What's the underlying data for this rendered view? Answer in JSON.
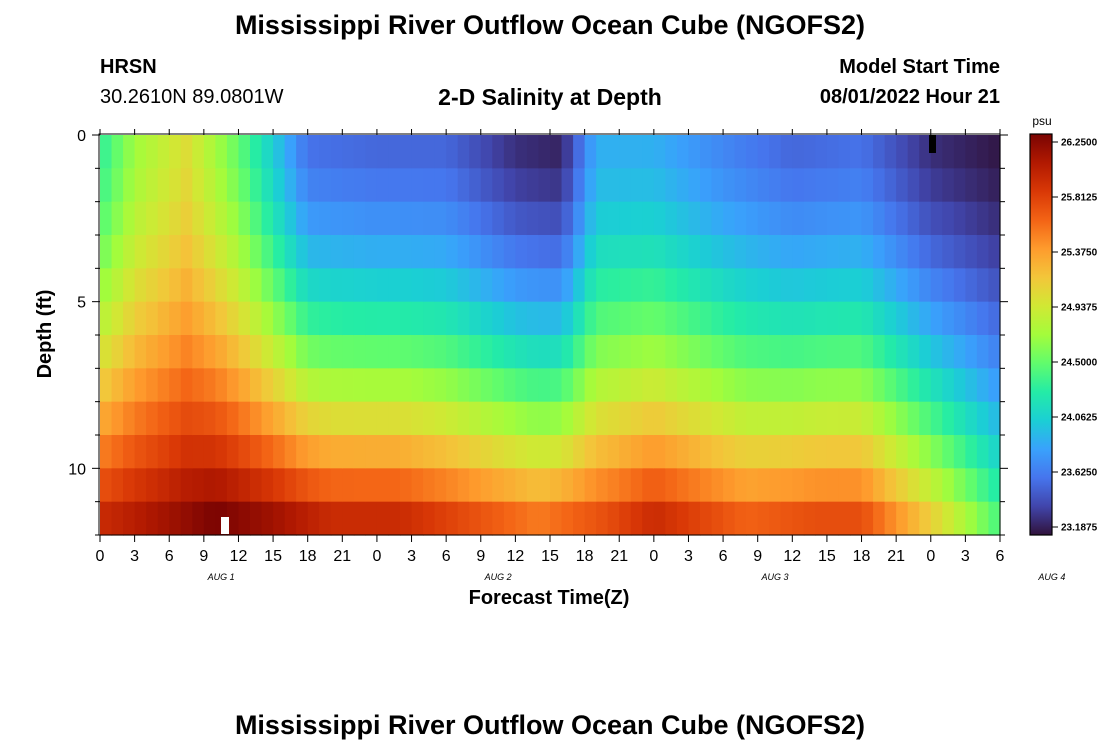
{
  "chart_data": {
    "type": "heatmap",
    "title": "Mississippi River Outflow Ocean Cube (NGOFS2)",
    "subtitle": "2-D Salinity at Depth",
    "station": "HRSN",
    "location": "30.2610N  89.0801W",
    "model_start_label": "Model Start Time",
    "model_start_value": "08/01/2022 Hour 21",
    "xlabel": "Forecast Time(Z)",
    "ylabel": "Depth (ft)",
    "colorbar_unit": "psu",
    "colorbar_ticks": [
      "26.2500",
      "25.8125",
      "25.3750",
      "24.9375",
      "24.5000",
      "24.0625",
      "23.6250",
      "23.1875"
    ],
    "value_range": [
      23.1875,
      26.25
    ],
    "x_tick_labels": [
      "0",
      "3",
      "6",
      "9",
      "12",
      "15",
      "18",
      "21",
      "0",
      "3",
      "6",
      "9",
      "12",
      "15",
      "18",
      "21",
      "0",
      "3",
      "6",
      "9",
      "12",
      "15",
      "18",
      "21",
      "0",
      "3",
      "6"
    ],
    "day_labels": [
      "AUG 1",
      "AUG 2",
      "AUG 3",
      "AUG 4"
    ],
    "y_tick_labels": [
      "0",
      "5",
      "10"
    ],
    "x_range_hours": [
      0,
      78
    ],
    "y_range_ft": [
      0,
      12
    ],
    "depth_levels_ft": [
      0.5,
      1.5,
      2.5,
      3.5,
      4.5,
      5.5,
      6.5,
      7.5,
      8.5,
      9.5,
      10.5,
      11.5
    ],
    "salinity_surface_keyframes_psu": [
      [
        0,
        24.3
      ],
      [
        3,
        24.7
      ],
      [
        7.5,
        25.0
      ],
      [
        12,
        24.5
      ],
      [
        18,
        23.6
      ],
      [
        24,
        23.55
      ],
      [
        30,
        23.55
      ],
      [
        36,
        23.3
      ],
      [
        40,
        23.25
      ],
      [
        43,
        23.9
      ],
      [
        48,
        23.9
      ],
      [
        54,
        23.7
      ],
      [
        60,
        23.55
      ],
      [
        66,
        23.6
      ],
      [
        72,
        23.3
      ],
      [
        78,
        23.2
      ]
    ],
    "salinity_bottom_keyframes_psu": [
      [
        0,
        25.9
      ],
      [
        6,
        26.1
      ],
      [
        10,
        26.25
      ],
      [
        15,
        26.1
      ],
      [
        20,
        25.9
      ],
      [
        26,
        25.9
      ],
      [
        32,
        25.7
      ],
      [
        38,
        25.5
      ],
      [
        44,
        25.7
      ],
      [
        48,
        25.9
      ],
      [
        56,
        25.6
      ],
      [
        62,
        25.7
      ],
      [
        66,
        25.7
      ],
      [
        72,
        25.1
      ],
      [
        78,
        24.4
      ]
    ]
  },
  "footer_title": "Mississippi River Outflow Ocean Cube (NGOFS2)",
  "colors": {
    "colormap": [
      "#30123b",
      "#4145ab",
      "#4675ed",
      "#39a2fc",
      "#1bcfd4",
      "#24eca6",
      "#61fc6c",
      "#a4fc3b",
      "#d1e834",
      "#f3c63a",
      "#fe9b2d",
      "#f36315",
      "#d93806",
      "#b11901",
      "#7a0402"
    ]
  }
}
